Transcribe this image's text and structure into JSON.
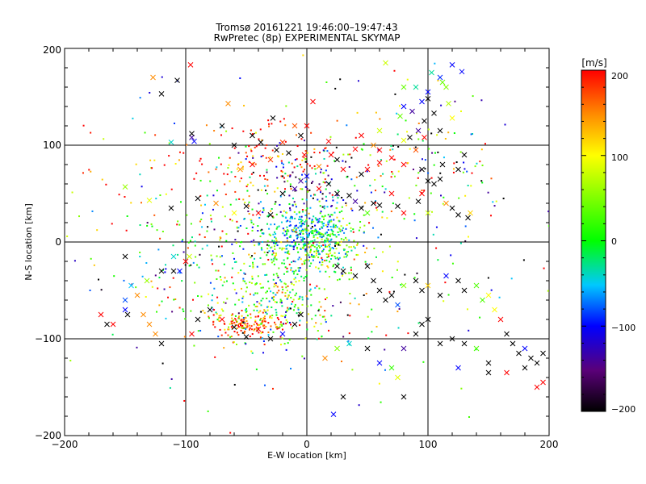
{
  "chart_data": {
    "type": "scatter",
    "title": "Tromsø 20161221 19:46:00–19:47:43",
    "subtitle": "RwPretec (8p) EXPERIMENTAL SKYMAP",
    "xlabel": "E-W location [km]",
    "ylabel": "N-S location [km]",
    "xlim": [
      -200,
      200
    ],
    "ylim": [
      -200,
      200
    ],
    "xticks": [
      "−200",
      "−100",
      "0",
      "100",
      "200"
    ],
    "yticks": [
      "−200",
      "−100",
      "0",
      "100",
      "200"
    ],
    "grid": true,
    "grid_lines_x": [
      -100,
      0,
      100
    ],
    "grid_lines_y": [
      -100,
      0,
      100
    ],
    "colorbar": {
      "label": "[m/s]",
      "range": [
        -200,
        200
      ],
      "ticks": [
        "200",
        "100",
        "0",
        "−100",
        "−200"
      ],
      "colors": [
        "#000000",
        "#5a0078",
        "#0000ff",
        "#00c8ff",
        "#00ff00",
        "#ffff00",
        "#ff8c00",
        "#ff0000"
      ]
    },
    "series": [
      {
        "marker": "x",
        "points": [
          [
            -127,
            170,
            150
          ],
          [
            -96,
            183,
            200
          ],
          [
            -120,
            153,
            -200
          ],
          [
            -107,
            167,
            -200
          ],
          [
            -95,
            108,
            -150
          ],
          [
            -95,
            112,
            -200
          ],
          [
            -93,
            104,
            -100
          ],
          [
            -112,
            103,
            -40
          ],
          [
            -65,
            143,
            150
          ],
          [
            -70,
            120,
            -200
          ],
          [
            -60,
            100,
            -200
          ],
          [
            -45,
            110,
            -200
          ],
          [
            -38,
            103,
            -200
          ],
          [
            -55,
            75,
            150
          ],
          [
            -45,
            80,
            200
          ],
          [
            -30,
            85,
            180
          ],
          [
            -20,
            103,
            180
          ],
          [
            -28,
            128,
            -200
          ],
          [
            -10,
            120,
            170
          ],
          [
            -5,
            110,
            -200
          ],
          [
            -25,
            95,
            -200
          ],
          [
            -15,
            92,
            -200
          ],
          [
            5,
            145,
            200
          ],
          [
            0,
            120,
            200
          ],
          [
            18,
            104,
            200
          ],
          [
            20,
            90,
            200
          ],
          [
            40,
            96,
            200
          ],
          [
            60,
            95,
            200
          ],
          [
            -2,
            90,
            200
          ],
          [
            10,
            78,
            150
          ],
          [
            25,
            85,
            -200
          ],
          [
            30,
            75,
            200
          ],
          [
            45,
            70,
            -200
          ],
          [
            50,
            75,
            200
          ],
          [
            60,
            82,
            200
          ],
          [
            70,
            87,
            200
          ],
          [
            80,
            80,
            200
          ],
          [
            90,
            95,
            170
          ],
          [
            97,
            108,
            200
          ],
          [
            95,
            75,
            -200
          ],
          [
            100,
            63,
            -200
          ],
          [
            105,
            60,
            -200
          ],
          [
            95,
            50,
            200
          ],
          [
            92,
            42,
            -200
          ],
          [
            100,
            30,
            80
          ],
          [
            115,
            40,
            150
          ],
          [
            120,
            35,
            -200
          ],
          [
            125,
            28,
            -200
          ],
          [
            135,
            30,
            120
          ],
          [
            133,
            25,
            -200
          ],
          [
            110,
            65,
            -200
          ],
          [
            125,
            75,
            -200
          ],
          [
            130,
            90,
            -200
          ],
          [
            112,
            80,
            -200
          ],
          [
            90,
            160,
            -30
          ],
          [
            95,
            145,
            -100
          ],
          [
            100,
            148,
            -200
          ],
          [
            105,
            133,
            -200
          ],
          [
            110,
            115,
            -200
          ],
          [
            97,
            125,
            -200
          ],
          [
            103,
            175,
            -30
          ],
          [
            110,
            170,
            -90
          ],
          [
            120,
            183,
            -100
          ],
          [
            128,
            176,
            -100
          ],
          [
            112,
            165,
            40
          ],
          [
            117,
            143,
            70
          ],
          [
            120,
            128,
            100
          ],
          [
            80,
            140,
            -100
          ],
          [
            87,
            135,
            -150
          ],
          [
            77,
            130,
            40
          ],
          [
            92,
            115,
            -150
          ],
          [
            85,
            108,
            -200
          ],
          [
            80,
            105,
            90
          ],
          [
            60,
            115,
            80
          ],
          [
            55,
            100,
            150
          ],
          [
            45,
            110,
            200
          ],
          [
            65,
            185,
            80
          ],
          [
            80,
            160,
            40
          ],
          [
            100,
            155,
            -100
          ],
          [
            115,
            160,
            50
          ],
          [
            -90,
            45,
            -200
          ],
          [
            -75,
            40,
            150
          ],
          [
            -60,
            30,
            100
          ],
          [
            -50,
            37,
            -200
          ],
          [
            -40,
            30,
            200
          ],
          [
            -30,
            28,
            -200
          ],
          [
            -20,
            50,
            -200
          ],
          [
            -10,
            55,
            -150
          ],
          [
            -5,
            63,
            -150
          ],
          [
            0,
            68,
            -100
          ],
          [
            10,
            55,
            200
          ],
          [
            18,
            60,
            -200
          ],
          [
            25,
            50,
            -200
          ],
          [
            35,
            48,
            -200
          ],
          [
            40,
            42,
            -150
          ],
          [
            45,
            35,
            -200
          ],
          [
            50,
            30,
            30
          ],
          [
            55,
            40,
            -200
          ],
          [
            60,
            38,
            -200
          ],
          [
            70,
            50,
            200
          ],
          [
            75,
            37,
            -200
          ],
          [
            80,
            30,
            200
          ],
          [
            -150,
            57,
            60
          ],
          [
            -130,
            43,
            90
          ],
          [
            -112,
            35,
            -200
          ],
          [
            -150,
            -15,
            -200
          ],
          [
            -145,
            -45,
            -50
          ],
          [
            -148,
            -75,
            -200
          ],
          [
            -165,
            -85,
            -200
          ],
          [
            -170,
            -75,
            200
          ],
          [
            -150,
            -60,
            -80
          ],
          [
            -110,
            -15,
            -40
          ],
          [
            -110,
            -30,
            -200
          ],
          [
            -95,
            -95,
            200
          ],
          [
            -90,
            -80,
            -200
          ],
          [
            -80,
            -70,
            -200
          ],
          [
            -70,
            -80,
            200
          ],
          [
            -60,
            -88,
            -200
          ],
          [
            -50,
            -98,
            -200
          ],
          [
            -40,
            -90,
            200
          ],
          [
            -30,
            -100,
            -200
          ],
          [
            -20,
            -95,
            -100
          ],
          [
            -10,
            -85,
            -200
          ],
          [
            -5,
            -75,
            -200
          ],
          [
            25,
            -25,
            -200
          ],
          [
            30,
            -30,
            -200
          ],
          [
            40,
            -35,
            -200
          ],
          [
            50,
            -25,
            -200
          ],
          [
            55,
            -40,
            -200
          ],
          [
            60,
            -50,
            -200
          ],
          [
            65,
            -60,
            -200
          ],
          [
            70,
            -55,
            -200
          ],
          [
            75,
            -65,
            -80
          ],
          [
            80,
            -45,
            50
          ],
          [
            90,
            -40,
            -200
          ],
          [
            95,
            -50,
            -200
          ],
          [
            100,
            -45,
            120
          ],
          [
            110,
            -55,
            -200
          ],
          [
            115,
            -35,
            -100
          ],
          [
            125,
            -40,
            -200
          ],
          [
            130,
            -50,
            -200
          ],
          [
            140,
            -45,
            30
          ],
          [
            145,
            -60,
            30
          ],
          [
            150,
            -55,
            100
          ],
          [
            155,
            -70,
            100
          ],
          [
            160,
            -80,
            200
          ],
          [
            165,
            -95,
            -200
          ],
          [
            170,
            -105,
            -200
          ],
          [
            175,
            -115,
            -200
          ],
          [
            180,
            -110,
            -100
          ],
          [
            185,
            -120,
            -200
          ],
          [
            190,
            -125,
            -200
          ],
          [
            195,
            -115,
            -200
          ],
          [
            195,
            -145,
            200
          ],
          [
            190,
            -150,
            200
          ],
          [
            180,
            -130,
            -200
          ],
          [
            165,
            -135,
            200
          ],
          [
            150,
            -125,
            -200
          ],
          [
            140,
            -110,
            30
          ],
          [
            130,
            -105,
            -200
          ],
          [
            120,
            -100,
            -200
          ],
          [
            110,
            -105,
            -200
          ],
          [
            100,
            -80,
            -200
          ],
          [
            95,
            -85,
            -200
          ],
          [
            90,
            -95,
            -200
          ],
          [
            80,
            -110,
            -150
          ],
          [
            70,
            -130,
            20
          ],
          [
            60,
            -125,
            -100
          ],
          [
            50,
            -110,
            -200
          ],
          [
            35,
            -105,
            -40
          ],
          [
            25,
            -110,
            50
          ],
          [
            15,
            -120,
            150
          ],
          [
            22,
            -178,
            -100
          ],
          [
            30,
            -160,
            -200
          ],
          [
            -120,
            -105,
            -200
          ],
          [
            -125,
            -95,
            150
          ],
          [
            -130,
            -85,
            150
          ],
          [
            -135,
            -75,
            150
          ],
          [
            -140,
            -55,
            150
          ],
          [
            -132,
            -40,
            60
          ],
          [
            -150,
            -70,
            -100
          ],
          [
            -160,
            -85,
            200
          ],
          [
            -105,
            -30,
            -100
          ],
          [
            -97,
            -15,
            80
          ],
          [
            -100,
            -20,
            200
          ],
          [
            75,
            -140,
            90
          ],
          [
            80,
            -160,
            -200
          ],
          [
            150,
            -135,
            -200
          ],
          [
            -120,
            -30,
            -200
          ],
          [
            125,
            -130,
            -100
          ]
        ]
      }
    ],
    "dot_clusters": [
      {
        "cx": 0,
        "cy": 10,
        "sx": 18,
        "sy": 14,
        "n": 320,
        "v": -40,
        "vs": 45
      },
      {
        "cx": 15,
        "cy": -5,
        "sx": 20,
        "sy": 15,
        "n": 160,
        "v": 40,
        "vs": 60
      },
      {
        "cx": -50,
        "cy": -85,
        "sx": 14,
        "sy": 6,
        "n": 130,
        "v": 170,
        "vs": 40
      },
      {
        "cx": -30,
        "cy": -75,
        "sx": 25,
        "sy": 18,
        "n": 170,
        "v": 60,
        "vs": 80
      },
      {
        "cx": -20,
        "cy": -40,
        "sx": 22,
        "sy": 25,
        "n": 150,
        "v": 10,
        "vs": 60
      },
      {
        "cx": -35,
        "cy": 85,
        "sx": 30,
        "sy": 20,
        "n": 120,
        "v": 180,
        "vs": 50
      },
      {
        "cx": 0,
        "cy": 60,
        "sx": 25,
        "sy": 20,
        "n": 110,
        "v": -100,
        "vs": 110
      },
      {
        "cx": 90,
        "cy": 90,
        "sx": 35,
        "sy": 35,
        "n": 110,
        "v": 60,
        "vs": 160
      },
      {
        "cx": -80,
        "cy": -30,
        "sx": 40,
        "sy": 40,
        "n": 110,
        "v": 0,
        "vs": 110
      },
      {
        "cx": 50,
        "cy": -20,
        "sx": 60,
        "sy": 50,
        "n": 100,
        "v": 0,
        "vs": 160
      },
      {
        "cx": -120,
        "cy": 50,
        "sx": 60,
        "sy": 40,
        "n": 60,
        "v": 150,
        "vs": 80
      },
      {
        "cx": 0,
        "cy": 0,
        "sx": 100,
        "sy": 100,
        "n": 160,
        "v": 0,
        "vs": 170
      },
      {
        "cx": -60,
        "cy": 0,
        "sx": 30,
        "sy": 30,
        "n": 80,
        "v": -10,
        "vs": 60
      }
    ]
  }
}
